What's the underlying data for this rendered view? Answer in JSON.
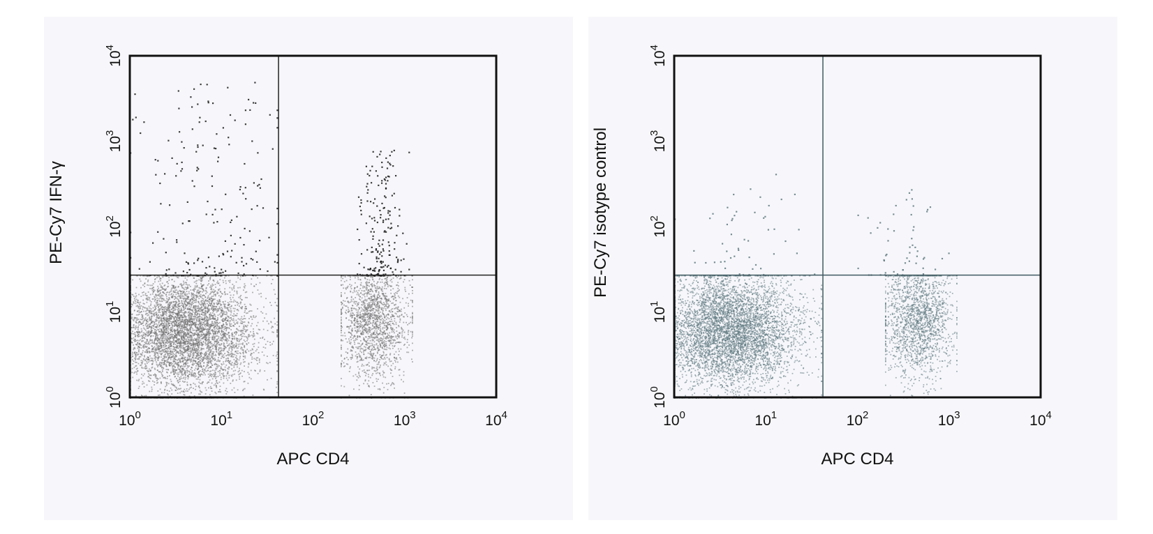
{
  "chart_data": [
    {
      "type": "scatter",
      "title": "",
      "xlabel": "APC CD4",
      "ylabel": "PE-Cy7 IFN-γ",
      "xscale": "log",
      "yscale": "log",
      "xlim": [
        1,
        10000
      ],
      "ylim": [
        1,
        10000
      ],
      "x_ticks": [
        "10^0",
        "10^1",
        "10^2",
        "10^3",
        "10^4"
      ],
      "y_ticks": [
        "10^0",
        "10^1",
        "10^2",
        "10^3",
        "10^4"
      ],
      "quadrant_gate": {
        "x": 42,
        "y": 27
      },
      "grid": false,
      "legend": "none",
      "series_color": "#6e6e6e",
      "high_signal_color": "#1a1a1a",
      "populations": [
        {
          "region": "lower-left",
          "x_center": 4,
          "y_center": 6,
          "x_range": [
            1,
            40
          ],
          "y_range": [
            1,
            27
          ],
          "density": "high"
        },
        {
          "region": "lower-right",
          "x_center": 450,
          "y_center": 8,
          "x_range": [
            200,
            1200
          ],
          "y_range": [
            1,
            27
          ],
          "density": "medium"
        },
        {
          "region": "upper-left",
          "x_center": 8,
          "y_center": 60,
          "x_range": [
            1,
            40
          ],
          "y_range": [
            27,
            5000
          ],
          "density": "sparse"
        },
        {
          "region": "upper-right",
          "x_center": 550,
          "y_center": 150,
          "x_range": [
            300,
            1100
          ],
          "y_range": [
            27,
            800
          ],
          "density": "sparse"
        }
      ]
    },
    {
      "type": "scatter",
      "title": "",
      "xlabel": "APC CD4",
      "ylabel": "PE-Cy7 isotype control",
      "xscale": "log",
      "yscale": "log",
      "xlim": [
        1,
        10000
      ],
      "ylim": [
        1,
        10000
      ],
      "x_ticks": [
        "10^0",
        "10^1",
        "10^2",
        "10^3",
        "10^4"
      ],
      "y_ticks": [
        "10^0",
        "10^1",
        "10^2",
        "10^3",
        "10^4"
      ],
      "quadrant_gate": {
        "x": 42,
        "y": 27
      },
      "grid": false,
      "legend": "none",
      "series_color": "#5f7a80",
      "populations": [
        {
          "region": "lower-left",
          "x_center": 4,
          "y_center": 6,
          "x_range": [
            1,
            40
          ],
          "y_range": [
            1,
            27
          ],
          "density": "high"
        },
        {
          "region": "lower-right",
          "x_center": 450,
          "y_center": 8,
          "x_range": [
            200,
            1200
          ],
          "y_range": [
            1,
            27
          ],
          "density": "medium"
        },
        {
          "region": "upper-left",
          "x_center": 5,
          "y_center": 40,
          "x_range": [
            1,
            40
          ],
          "y_range": [
            27,
            500
          ],
          "density": "very-sparse"
        },
        {
          "region": "upper-right",
          "x_center": 300,
          "y_center": 60,
          "x_range": [
            100,
            1000
          ],
          "y_range": [
            27,
            300
          ],
          "density": "very-sparse"
        }
      ]
    }
  ]
}
